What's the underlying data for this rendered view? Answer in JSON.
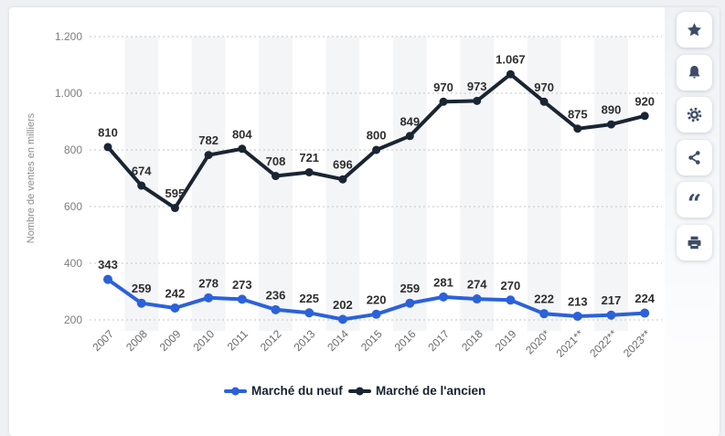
{
  "page": {
    "background": "#eef0f3",
    "card_color": "#ffffff"
  },
  "chart_data": {
    "type": "line",
    "title": "",
    "ylabel": "Nombre de ventes en milliers",
    "xlabel": "",
    "categories": [
      "2007",
      "2008",
      "2009",
      "2010",
      "2011",
      "2012",
      "2013",
      "2014",
      "2015",
      "2016",
      "2017",
      "2018",
      "2019",
      "2020*",
      "2021**",
      "2022**",
      "2023**"
    ],
    "series": [
      {
        "name": "Marché du neuf",
        "color": "#2b62da",
        "values": [
          343,
          259,
          242,
          278,
          273,
          236,
          225,
          202,
          220,
          259,
          281,
          274,
          270,
          222,
          213,
          217,
          224
        ]
      },
      {
        "name": "Marché de l'ancien",
        "color": "#1a2533",
        "values": [
          810,
          674,
          595,
          782,
          804,
          708,
          721,
          696,
          800,
          849,
          970,
          973,
          1067,
          970,
          875,
          890,
          920
        ]
      }
    ],
    "y_ticks": [
      200,
      400,
      600,
      800,
      1000,
      1200
    ],
    "y_tick_labels": [
      "200",
      "400",
      "600",
      "800",
      "1.000",
      "1.200"
    ],
    "ylim": [
      200,
      1200
    ],
    "grid": "dotted-horizontal",
    "stripes": "alternating-vertical-bands",
    "legend_position": "bottom",
    "value_labels_shown": true,
    "value_label_1067_display": "1.067"
  },
  "toolbar": {
    "buttons": [
      {
        "id": "favorite",
        "icon": "star-icon"
      },
      {
        "id": "alerts",
        "icon": "bell-icon"
      },
      {
        "id": "settings",
        "icon": "gear-icon"
      },
      {
        "id": "share",
        "icon": "share-icon"
      },
      {
        "id": "cite",
        "icon": "quote-icon"
      },
      {
        "id": "print",
        "icon": "printer-icon"
      }
    ]
  },
  "colors": {
    "stripe": "#f4f5f7",
    "gridline": "#c6c6c6",
    "tick_text": "#7d7d7d",
    "xtick_text": "#6b6b6b",
    "value_label_text": "#2e2e2e",
    "legend_text": "#16212f",
    "icon": "#3d4d66"
  }
}
